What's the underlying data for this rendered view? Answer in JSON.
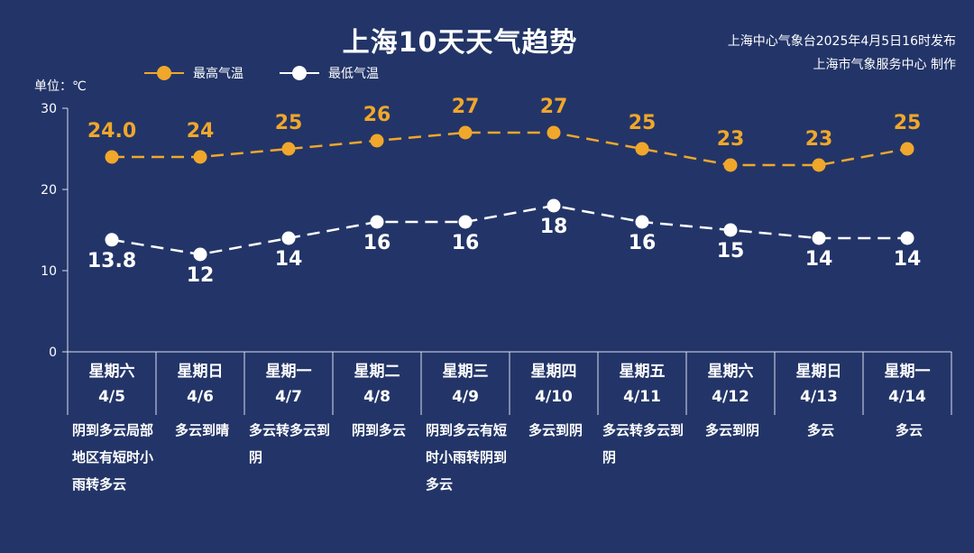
{
  "title": "上海10天天气趋势",
  "publisher": {
    "line1": "上海中心气象台2025年4月5日16时发布",
    "line2": "上海市气象服务中心 制作"
  },
  "unit_label": "单位：℃",
  "colors": {
    "background": "#233568",
    "high": "#f0a72b",
    "low": "#ffffff",
    "axis": "#d9e0f0"
  },
  "chart_data": {
    "type": "line",
    "ylim": [
      0,
      30
    ],
    "yticks": [
      "0",
      "10",
      "20",
      "30"
    ],
    "ytick_values": [
      0,
      10,
      20,
      30
    ],
    "legend_position": "top-left",
    "grid": false,
    "categories": [
      "4/5",
      "4/6",
      "4/7",
      "4/8",
      "4/9",
      "4/10",
      "4/11",
      "4/12",
      "4/13",
      "4/14"
    ],
    "weekdays": [
      "星期六",
      "星期日",
      "星期一",
      "星期二",
      "星期三",
      "星期四",
      "星期五",
      "星期六",
      "星期日",
      "星期一"
    ],
    "weather": [
      "阴到多云局部地区有短时小雨转多云",
      "多云到晴",
      "多云转多云到阴",
      "阴到多云",
      "阴到多云有短时小雨转阴到多云",
      "多云到阴",
      "多云转多云到阴",
      "多云到阴",
      "多云",
      "多云"
    ],
    "series": [
      {
        "name": "最高气温",
        "values": [
          24.0,
          24,
          25,
          26,
          27,
          27,
          25,
          23,
          23,
          25
        ],
        "labels": [
          "24.0",
          "24",
          "25",
          "26",
          "27",
          "27",
          "25",
          "23",
          "23",
          "25"
        ]
      },
      {
        "name": "最低气温",
        "values": [
          13.8,
          12,
          14,
          16,
          16,
          18,
          16,
          15,
          14,
          14
        ],
        "labels": [
          "13.8",
          "12",
          "14",
          "16",
          "16",
          "18",
          "16",
          "15",
          "14",
          "14"
        ]
      }
    ]
  }
}
